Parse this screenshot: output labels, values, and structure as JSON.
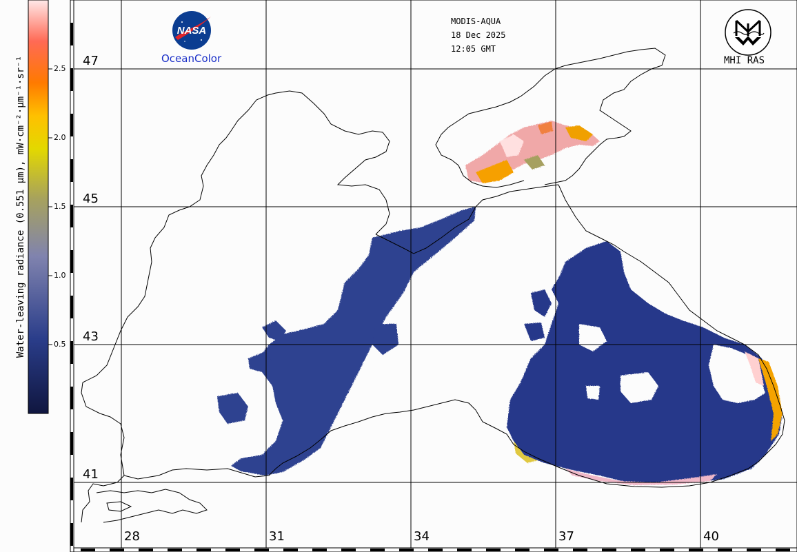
{
  "header": {
    "sensor": "MODIS-AQUA",
    "date": "18 Dec 2025",
    "time": "12:05 GMT"
  },
  "logos": {
    "nasa_text": "NASA",
    "oceancolor_text": "OceanColor",
    "mhi_text": "MHI RAS"
  },
  "colorbar": {
    "label": "Water-leaving radiance (0.551 µm), mW·cm⁻²·µm⁻¹·sr⁻¹",
    "ticks": [
      "2.5",
      "2.0",
      "1.5",
      "1.0",
      "0.5"
    ],
    "colors": [
      "#151a52",
      "#2a3c8c",
      "#7f84b0",
      "#a9a05a",
      "#e4d800",
      "#ff8a00",
      "#ff5a2a",
      "#ffd2d2"
    ]
  },
  "axes": {
    "latitudes": [
      "47",
      "45",
      "43",
      "41"
    ],
    "longitudes": [
      "28",
      "31",
      "34",
      "37",
      "40"
    ]
  },
  "map_colors": {
    "land": "#fcfcfc",
    "coast": "#000000",
    "water_low": "#1f2d6e",
    "water_mid": "#34468e",
    "azov_high": "#f2a3a3",
    "azov_orange": "#f6a400"
  }
}
